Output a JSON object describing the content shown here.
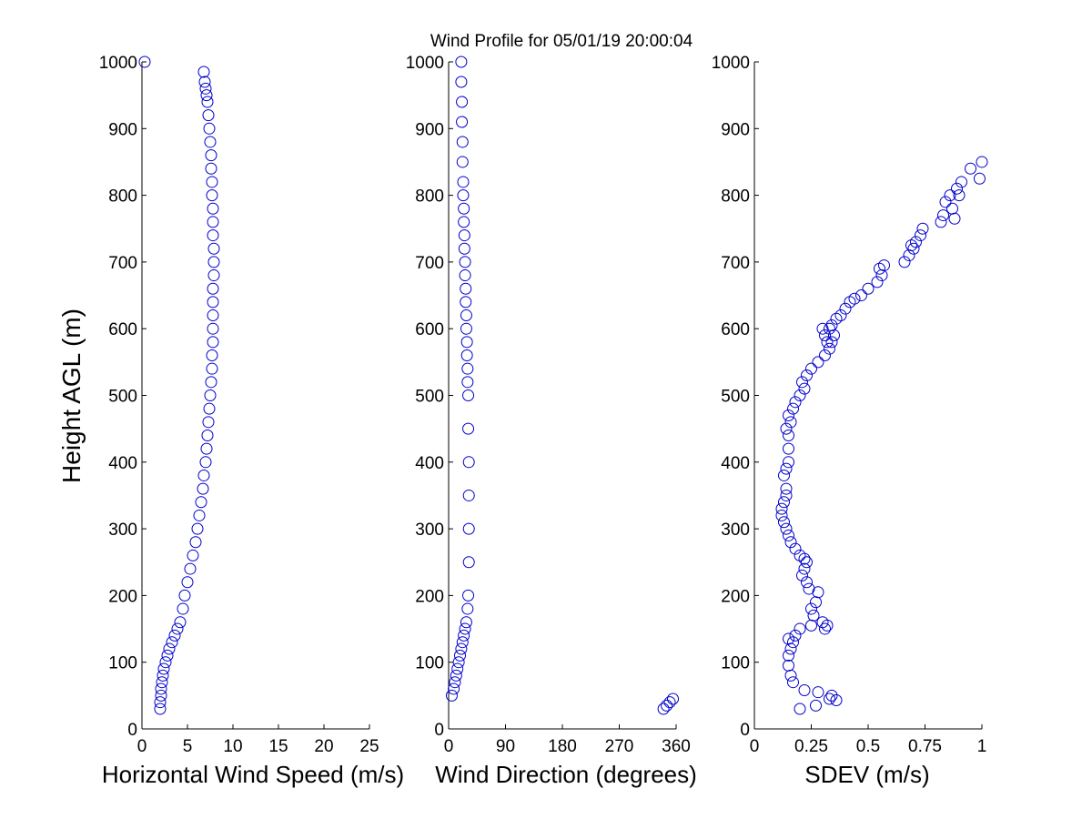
{
  "figure": {
    "title": "Wind Profile for  05/01/19 20:00:04",
    "ylabel": "Height AGL (m)",
    "marker_color": "#0000cc"
  },
  "chart_data": [
    {
      "type": "scatter",
      "xlabel": "Horizontal Wind Speed (m/s)",
      "ylabel": "Height AGL (m)",
      "xlim": [
        0,
        25
      ],
      "ylim": [
        0,
        1000
      ],
      "xticks": [
        0,
        5,
        10,
        15,
        20,
        25
      ],
      "yticks": [
        0,
        100,
        200,
        300,
        400,
        500,
        600,
        700,
        800,
        900,
        1000
      ],
      "grid": false,
      "x": [
        2.0,
        2.0,
        2.1,
        2.1,
        2.2,
        2.3,
        2.4,
        2.6,
        2.8,
        3.0,
        3.3,
        3.6,
        3.9,
        4.2,
        4.5,
        4.7,
        5.0,
        5.3,
        5.6,
        5.9,
        6.1,
        6.3,
        6.5,
        6.7,
        6.8,
        7.0,
        7.1,
        7.2,
        7.3,
        7.4,
        7.5,
        7.6,
        7.7,
        7.7,
        7.8,
        7.8,
        7.8,
        7.8,
        7.8,
        7.9,
        7.9,
        7.9,
        7.8,
        7.8,
        7.8,
        7.7,
        7.7,
        7.6,
        7.6,
        7.5,
        7.4,
        7.3,
        7.2,
        7.1,
        7.0,
        6.9,
        6.8,
        0.3
      ],
      "y": [
        30,
        40,
        50,
        60,
        70,
        80,
        90,
        100,
        110,
        120,
        130,
        140,
        150,
        160,
        180,
        200,
        220,
        240,
        260,
        280,
        300,
        320,
        340,
        360,
        380,
        400,
        420,
        440,
        460,
        480,
        500,
        520,
        540,
        560,
        580,
        600,
        620,
        640,
        660,
        680,
        700,
        720,
        740,
        760,
        780,
        800,
        820,
        840,
        860,
        880,
        900,
        920,
        940,
        950,
        960,
        970,
        985,
        1000
      ]
    },
    {
      "type": "scatter",
      "xlabel": "Wind Direction (degrees)",
      "ylabel": "",
      "xlim": [
        0,
        360
      ],
      "ylim": [
        0,
        1000
      ],
      "xticks": [
        0,
        90,
        180,
        270,
        360
      ],
      "yticks": [
        0,
        100,
        200,
        300,
        400,
        500,
        600,
        700,
        800,
        900,
        1000
      ],
      "grid": false,
      "x": [
        340,
        345,
        350,
        355,
        5,
        8,
        10,
        12,
        14,
        16,
        18,
        20,
        22,
        24,
        26,
        28,
        30,
        31,
        32,
        32,
        32,
        32,
        31,
        31,
        30,
        30,
        29,
        29,
        28,
        28,
        27,
        27,
        26,
        26,
        25,
        25,
        24,
        24,
        23,
        23,
        22,
        22,
        21,
        21,
        20,
        20
      ],
      "y": [
        30,
        35,
        40,
        45,
        50,
        60,
        70,
        80,
        90,
        100,
        110,
        120,
        130,
        140,
        150,
        160,
        180,
        200,
        250,
        300,
        350,
        400,
        450,
        500,
        520,
        540,
        560,
        580,
        600,
        620,
        640,
        660,
        680,
        700,
        720,
        740,
        760,
        780,
        800,
        820,
        850,
        880,
        910,
        940,
        970,
        1000
      ]
    },
    {
      "type": "scatter",
      "xlabel": "SDEV  (m/s)",
      "ylabel": "",
      "xlim": [
        0,
        1
      ],
      "ylim": [
        0,
        1000
      ],
      "xticks": [
        0,
        0.25,
        0.5,
        0.75,
        1
      ],
      "xtick_labels": [
        "0",
        "0.25",
        "0.5",
        "0.75",
        "1"
      ],
      "yticks": [
        0,
        100,
        200,
        300,
        400,
        500,
        600,
        700,
        800,
        900,
        1000
      ],
      "grid": false,
      "x": [
        0.2,
        0.27,
        0.33,
        0.36,
        0.22,
        0.28,
        0.34,
        0.17,
        0.16,
        0.15,
        0.15,
        0.16,
        0.15,
        0.17,
        0.18,
        0.2,
        0.25,
        0.3,
        0.31,
        0.32,
        0.26,
        0.25,
        0.27,
        0.28,
        0.24,
        0.23,
        0.21,
        0.22,
        0.23,
        0.22,
        0.2,
        0.18,
        0.16,
        0.15,
        0.14,
        0.13,
        0.12,
        0.12,
        0.13,
        0.14,
        0.14,
        0.13,
        0.14,
        0.15,
        0.15,
        0.15,
        0.14,
        0.16,
        0.15,
        0.17,
        0.18,
        0.2,
        0.22,
        0.21,
        0.23,
        0.25,
        0.28,
        0.31,
        0.33,
        0.34,
        0.35,
        0.32,
        0.3,
        0.34,
        0.36,
        0.33,
        0.31,
        0.38,
        0.4,
        0.42,
        0.44,
        0.47,
        0.5,
        0.54,
        0.56,
        0.55,
        0.57,
        0.66,
        0.68,
        0.7,
        0.71,
        0.73,
        0.69,
        0.74,
        0.82,
        0.83,
        0.87,
        0.84,
        0.86,
        0.89,
        0.91,
        0.88,
        0.9,
        0.95,
        1.0,
        0.99
      ],
      "y": [
        30,
        35,
        45,
        43,
        58,
        55,
        50,
        70,
        80,
        95,
        110,
        120,
        135,
        130,
        140,
        150,
        155,
        160,
        150,
        155,
        170,
        180,
        190,
        205,
        210,
        220,
        230,
        240,
        250,
        255,
        260,
        270,
        280,
        290,
        300,
        310,
        320,
        330,
        340,
        350,
        360,
        380,
        390,
        400,
        420,
        440,
        450,
        460,
        470,
        480,
        490,
        500,
        510,
        520,
        530,
        540,
        550,
        560,
        570,
        580,
        590,
        580,
        600,
        605,
        615,
        600,
        590,
        620,
        630,
        640,
        645,
        650,
        660,
        670,
        680,
        690,
        695,
        700,
        710,
        720,
        730,
        740,
        725,
        750,
        760,
        770,
        780,
        790,
        800,
        810,
        820,
        765,
        800,
        840,
        850,
        825
      ]
    }
  ]
}
